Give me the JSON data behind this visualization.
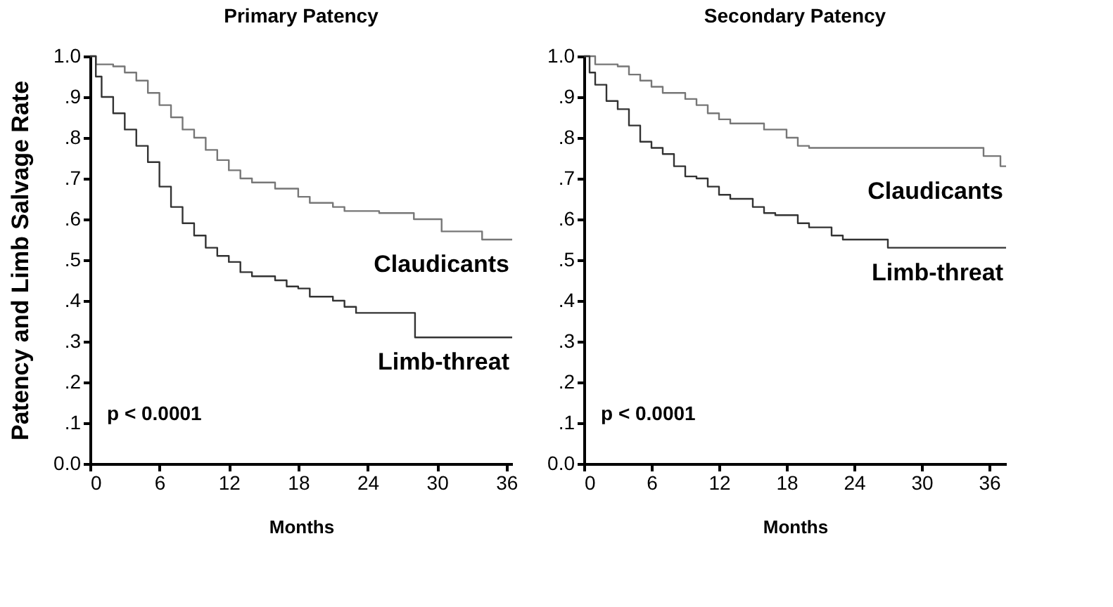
{
  "chart_data": [
    {
      "type": "step",
      "title": "Primary Patency",
      "xlabel": "Months",
      "ylabel": "Patency and Limb Salvage Rate",
      "xlim": [
        0,
        36.5
      ],
      "xticks": [
        0,
        6,
        12,
        18,
        24,
        30,
        36
      ],
      "ylim": [
        0,
        1.0
      ],
      "yticks": [
        {
          "value": 0,
          "label": "0.0"
        },
        {
          "value": 0.1,
          "label": ".1"
        },
        {
          "value": 0.2,
          "label": ".2"
        },
        {
          "value": 0.3,
          "label": ".3"
        },
        {
          "value": 0.4,
          "label": ".4"
        },
        {
          "value": 0.5,
          "label": ".5"
        },
        {
          "value": 0.6,
          "label": ".6"
        },
        {
          "value": 0.7,
          "label": ".7"
        },
        {
          "value": 0.8,
          "label": ".8"
        },
        {
          "value": 0.9,
          "label": ".9"
        },
        {
          "value": 1.0,
          "label": "1.0"
        }
      ],
      "grid": false,
      "legend": false,
      "annotations": [
        "p < 0.0001"
      ],
      "series": [
        {
          "name": "Claudicants",
          "color": "#777777",
          "x": [
            0,
            0.5,
            2,
            3,
            4,
            5,
            6,
            7,
            8,
            9,
            10,
            11,
            12,
            13,
            14,
            16,
            18,
            19,
            21,
            22,
            25,
            28,
            30.4,
            33.9,
            36.5
          ],
          "values": [
            1.0,
            0.98,
            0.975,
            0.96,
            0.94,
            0.91,
            0.88,
            0.85,
            0.82,
            0.8,
            0.77,
            0.745,
            0.72,
            0.7,
            0.69,
            0.675,
            0.655,
            0.64,
            0.63,
            0.62,
            0.615,
            0.6,
            0.57,
            0.55,
            0.55
          ]
        },
        {
          "name": "Limb-threat",
          "color": "#333333",
          "x": [
            0,
            0.5,
            1,
            2,
            3,
            4,
            5,
            6,
            7,
            8,
            9,
            10,
            11,
            12,
            13,
            14,
            16,
            17,
            18,
            19,
            21,
            22,
            23,
            28.1,
            36.5
          ],
          "values": [
            1.0,
            0.95,
            0.9,
            0.86,
            0.82,
            0.78,
            0.74,
            0.68,
            0.63,
            0.59,
            0.56,
            0.53,
            0.51,
            0.495,
            0.47,
            0.46,
            0.45,
            0.435,
            0.43,
            0.41,
            0.4,
            0.385,
            0.37,
            0.31,
            0.31
          ]
        }
      ]
    },
    {
      "type": "step",
      "title": "Secondary Patency",
      "xlabel": "Months",
      "xlim": [
        0,
        37.5
      ],
      "xticks": [
        0,
        6,
        12,
        18,
        24,
        30,
        36
      ],
      "ylim": [
        0,
        1.0
      ],
      "yticks": [
        {
          "value": 0,
          "label": "0.0"
        },
        {
          "value": 0.1,
          "label": ".1"
        },
        {
          "value": 0.2,
          "label": ".2"
        },
        {
          "value": 0.3,
          "label": ".3"
        },
        {
          "value": 0.4,
          "label": ".4"
        },
        {
          "value": 0.5,
          "label": ".5"
        },
        {
          "value": 0.6,
          "label": ".6"
        },
        {
          "value": 0.7,
          "label": ".7"
        },
        {
          "value": 0.8,
          "label": ".8"
        },
        {
          "value": 0.9,
          "label": ".9"
        },
        {
          "value": 1.0,
          "label": "1.0"
        }
      ],
      "grid": false,
      "legend": false,
      "annotations": [
        "p < 0.0001"
      ],
      "series": [
        {
          "name": "Claudicants",
          "color": "#777777",
          "x": [
            0,
            1,
            3,
            4,
            5,
            6,
            7,
            9,
            10,
            11,
            12,
            13,
            16,
            18,
            19,
            20,
            35.5,
            37,
            37.5
          ],
          "values": [
            1.0,
            0.98,
            0.975,
            0.955,
            0.94,
            0.925,
            0.91,
            0.895,
            0.88,
            0.86,
            0.845,
            0.835,
            0.82,
            0.8,
            0.78,
            0.775,
            0.755,
            0.73,
            0.73
          ]
        },
        {
          "name": "Limb-threat",
          "color": "#333333",
          "x": [
            0,
            0.5,
            1,
            2,
            3,
            4,
            5,
            6,
            7,
            8,
            9,
            10,
            11,
            12,
            13,
            15,
            16,
            17,
            19,
            20,
            22,
            23,
            27,
            37.5
          ],
          "values": [
            1.0,
            0.96,
            0.93,
            0.89,
            0.87,
            0.83,
            0.79,
            0.775,
            0.76,
            0.73,
            0.705,
            0.7,
            0.68,
            0.66,
            0.65,
            0.63,
            0.615,
            0.61,
            0.59,
            0.58,
            0.56,
            0.55,
            0.53,
            0.53
          ]
        }
      ]
    }
  ]
}
